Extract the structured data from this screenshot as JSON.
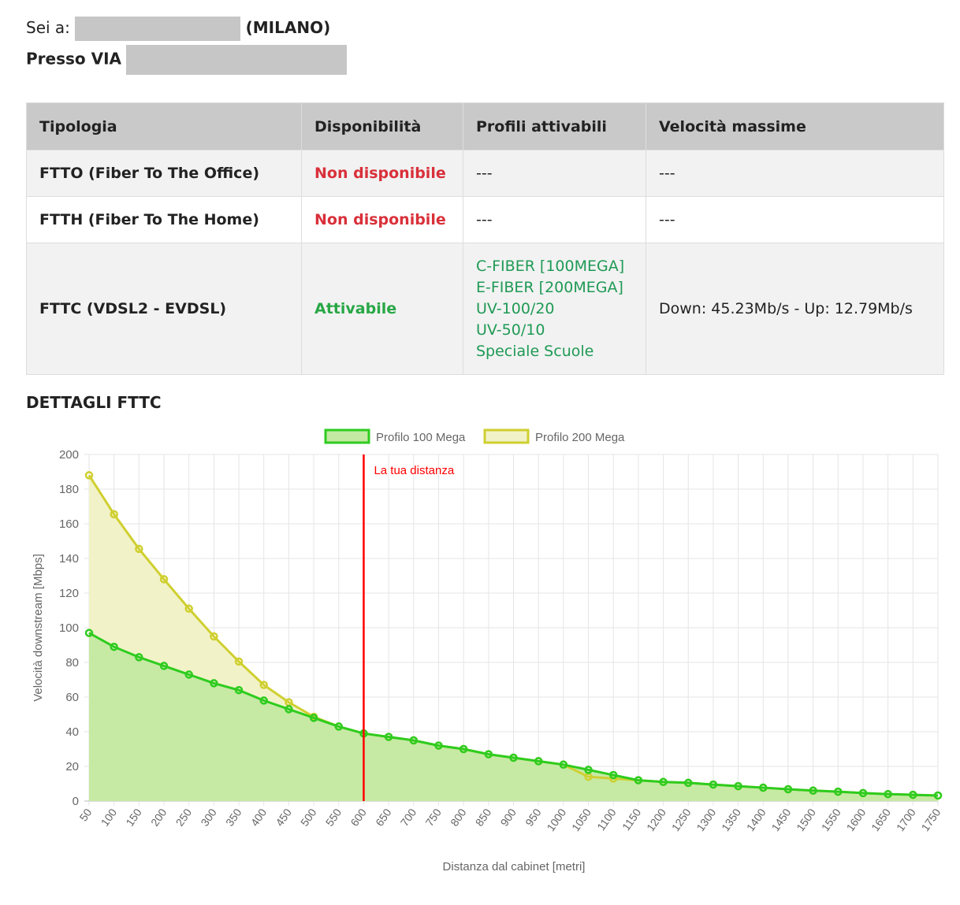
{
  "location": {
    "prefix": "Sei a:",
    "city": "(MILANO)",
    "address_prefix": "Presso VIA"
  },
  "table": {
    "headers": [
      "Tipologia",
      "Disponibilità",
      "Profili attivabili",
      "Velocità massime"
    ],
    "rows": [
      {
        "type": "FTTO (Fiber To The Office)",
        "availability": "Non disponibile",
        "profiles": [
          "---"
        ],
        "speed": "---"
      },
      {
        "type": "FTTH (Fiber To The Home)",
        "availability": "Non disponibile",
        "profiles": [
          "---"
        ],
        "speed": "---"
      },
      {
        "type": "FTTC (VDSL2 - EVDSL)",
        "availability": "Attivabile",
        "profiles": [
          "C-FIBER [100MEGA]",
          "E-FIBER [200MEGA]",
          "UV-100/20",
          "UV-50/10",
          "Speciale Scuole"
        ],
        "speed": "Down: 45.23Mb/s - Up: 12.79Mb/s"
      }
    ]
  },
  "section_title": "DETTAGLI FTTC",
  "chart_data": {
    "type": "area",
    "xlabel": "Distanza dal cabinet [metri]",
    "ylabel": "Velocità downstream [Mbps]",
    "ylim": [
      0,
      200
    ],
    "yticks": [
      0,
      20,
      40,
      60,
      80,
      100,
      120,
      140,
      160,
      180,
      200
    ],
    "grid": true,
    "legend": "top",
    "x": [
      50,
      100,
      150,
      200,
      250,
      300,
      350,
      400,
      450,
      500,
      550,
      600,
      650,
      700,
      750,
      800,
      850,
      900,
      950,
      1000,
      1050,
      1100,
      1150,
      1200,
      1250,
      1300,
      1350,
      1400,
      1450,
      1500,
      1550,
      1600,
      1650,
      1700,
      1750
    ],
    "series": [
      {
        "name": "Profilo 100 Mega",
        "color": "#2ecc1f",
        "fill": "#c3e9a2",
        "values": [
          97,
          89,
          83,
          78,
          73,
          68,
          64,
          58,
          53,
          48,
          43,
          39,
          37,
          35,
          32,
          30,
          27,
          25,
          23,
          21,
          18,
          15,
          12,
          11,
          10.5,
          9.5,
          8.6,
          7.7,
          6.8,
          6,
          5.4,
          4.6,
          4,
          3.6,
          3.2
        ]
      },
      {
        "name": "Profilo 200 Mega",
        "color": "#cfcf30",
        "fill": "#f2f2c8",
        "values": [
          188,
          165.5,
          145.5,
          128,
          111,
          95,
          80.5,
          67,
          57,
          48.6,
          43,
          39,
          37,
          35,
          32,
          30,
          27,
          25,
          23,
          21,
          14,
          13,
          12,
          11,
          10.5,
          9.5,
          8.6,
          7.7,
          6.8,
          6,
          5.4,
          4.6,
          4,
          3.6,
          3.2
        ]
      }
    ],
    "marker": {
      "x": 600,
      "label": "La tua distanza",
      "color": "#ff0000"
    }
  }
}
